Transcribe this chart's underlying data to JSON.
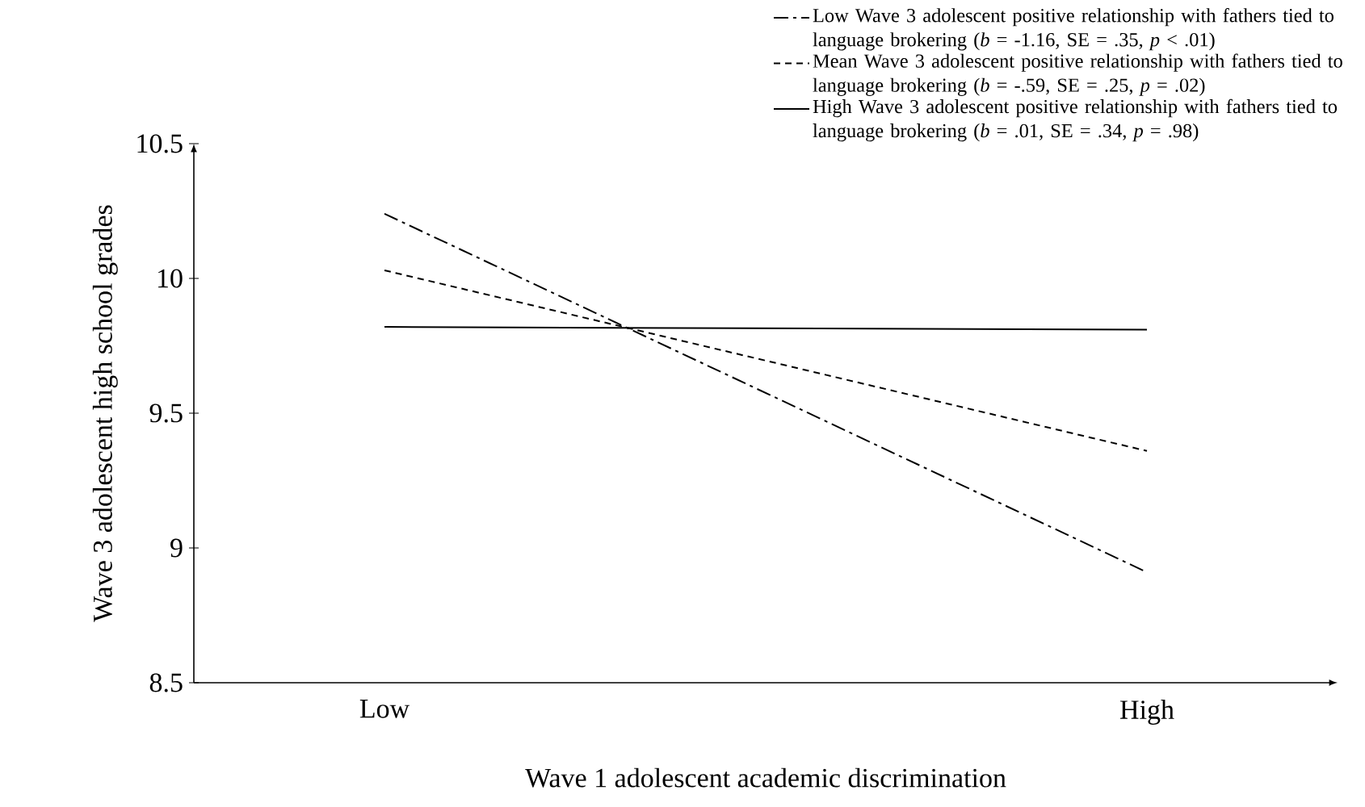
{
  "chart_data": {
    "type": "line",
    "xlabel": "Wave 1 adolescent academic discrimination",
    "ylabel": "Wave 3 adolescent high school grades",
    "categories": [
      "Low",
      "High"
    ],
    "series": [
      {
        "name": "Low Wave 3 adolescent positive relationship with fathers tied to language brokering  (*b* = -1.16, SE = .35, *p* < .01)",
        "color": "#000000",
        "line_style": "dashdot",
        "values": [
          10.24,
          8.91
        ]
      },
      {
        "name": "Mean Wave 3 adolescent positive relationship with fathers tied to language brokering  (*b* = -.59, SE = .25, *p* = .02)",
        "color": "#000000",
        "line_style": "dashed",
        "values": [
          10.03,
          9.36
        ]
      },
      {
        "name": "High Wave 3 adolescent positive relationship with fathers tied to language brokering  (*b* = .01, SE = .34, *p* = .98)",
        "color": "#000000",
        "line_style": "solid",
        "values": [
          9.82,
          9.81
        ]
      }
    ],
    "ylim": [
      8.5,
      10.5
    ],
    "yticks": [
      8.5,
      9,
      9.5,
      10,
      10.5
    ],
    "grid": false,
    "legend": "top right",
    "marker": "none"
  }
}
